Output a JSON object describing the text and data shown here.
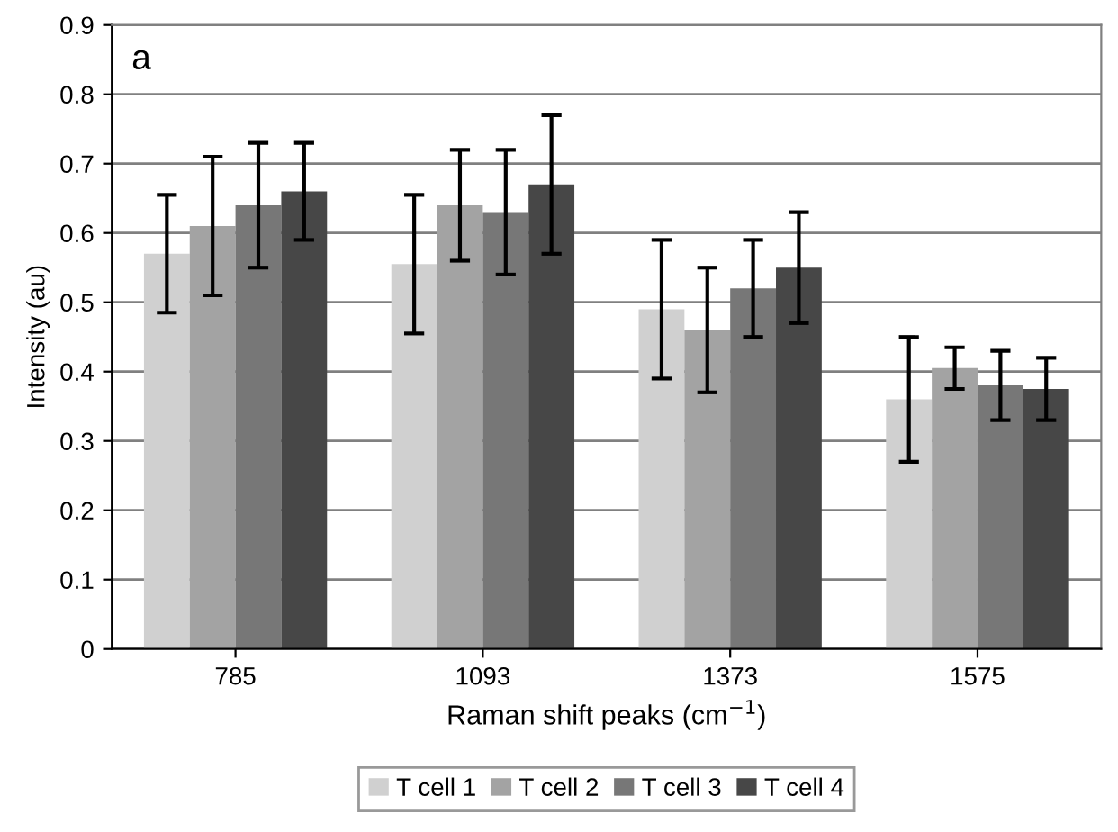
{
  "chart_data": {
    "type": "bar",
    "xlabel": "Raman shift peaks (cm$^{−1}$)",
    "ylabel": "Intensity (au)",
    "annotations": [
      "a"
    ],
    "categories": [
      "785",
      "1093",
      "1373",
      "1575"
    ],
    "series": [
      {
        "name": "T cell 1",
        "color": "#d0d0d0",
        "values": [
          0.57,
          0.555,
          0.49,
          0.36
        ],
        "errors": [
          0.085,
          0.1,
          0.1,
          0.09
        ]
      },
      {
        "name": "T cell 2",
        "color": "#a3a3a3",
        "values": [
          0.61,
          0.64,
          0.46,
          0.405
        ],
        "errors": [
          0.1,
          0.08,
          0.09,
          0.03
        ]
      },
      {
        "name": "T cell 3",
        "color": "#777777",
        "values": [
          0.64,
          0.63,
          0.52,
          0.38
        ],
        "errors": [
          0.09,
          0.09,
          0.07,
          0.05
        ]
      },
      {
        "name": "T cell 4",
        "color": "#474747",
        "values": [
          0.66,
          0.67,
          0.55,
          0.375
        ],
        "errors": [
          0.07,
          0.1,
          0.08,
          0.045
        ]
      }
    ],
    "ylim": [
      0,
      0.9
    ],
    "yticks": [
      0,
      0.1,
      0.2,
      0.3,
      0.4,
      0.5,
      0.6,
      0.7,
      0.8,
      0.9
    ],
    "grid": "y",
    "legend": "bottom"
  }
}
